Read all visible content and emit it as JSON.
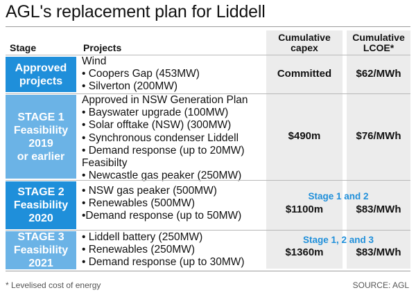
{
  "title": "AGL's replacement plan for Liddell",
  "headers": {
    "stage": "Stage",
    "projects": "Projects",
    "capex_line1": "Cumulative",
    "capex_line2": "capex",
    "lcoe_line1": "Cumulative",
    "lcoe_line2": "LCOE*"
  },
  "rows": [
    {
      "stage": [
        "Approved",
        "projects"
      ],
      "projects": [
        "Wind",
        "• Coopers Gap (453MW)",
        "• Silverton (200MW)"
      ],
      "capex": "Committed",
      "lcoe": "$62/MWh"
    },
    {
      "stage": [
        "STAGE 1",
        "Feasibility",
        "2019",
        "or earlier"
      ],
      "projects": [
        "Approved in NSW Generation Plan",
        "• Bayswater upgrade (100MW)",
        "• Solar offtake (NSW) (300MW)",
        "• Synchronous condenser Liddell",
        "• Demand response (up to 20MW)",
        "Feasibilty",
        "• Newcastle gas peaker (250MW)"
      ],
      "capex": "$490m",
      "lcoe": "$76/MWh"
    },
    {
      "stage": [
        "STAGE 2",
        "Feasibility",
        "2020"
      ],
      "projects": [
        "• NSW gas peaker (500MW)",
        "• Renewables (500MW)",
        "•Demand response (up to 50MW)"
      ],
      "note": "Stage 1 and 2",
      "capex": "$1100m",
      "lcoe": "$83/MWh"
    },
    {
      "stage": [
        "STAGE 3",
        "Feasibility",
        "2021"
      ],
      "projects": [
        "• Liddell battery (250MW)",
        "• Renewables (250MW)",
        "• Demand response (up to 30MW)"
      ],
      "note": "Stage 1, 2 and 3",
      "capex": "$1360m",
      "lcoe": "$83/MWh"
    }
  ],
  "footnote": "* Levelised cost of energy",
  "source": "SOURCE: AGL",
  "colors": {
    "stage_dark": "#1f8fda",
    "stage_light": "#6bb3e6",
    "column_shade": "#ececec",
    "note_text": "#1f8fda"
  }
}
